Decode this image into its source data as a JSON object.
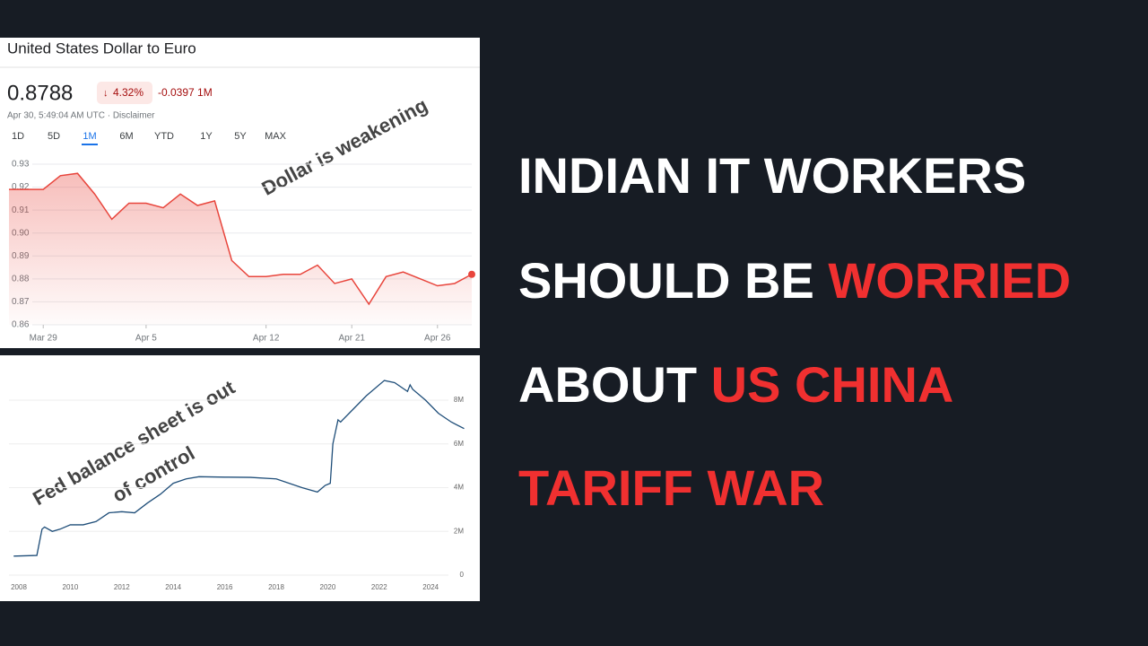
{
  "chart_data": [
    {
      "type": "line",
      "title": "United States Dollar to Euro",
      "price": "0.8788",
      "change_percent": "4.32%",
      "change_abs": "-0.0397 1M",
      "timestamp": "Apr 30, 5:49:04 AM UTC · Disclaimer",
      "ranges": [
        "1D",
        "5D",
        "1M",
        "6M",
        "YTD",
        "1Y",
        "5Y",
        "MAX"
      ],
      "selected_range": 2,
      "annotation": "Dollar is weakening",
      "categories": [
        null,
        null,
        "Mar 29",
        null,
        null,
        null,
        null,
        null,
        "Apr 5",
        null,
        null,
        null,
        null,
        null,
        null,
        "Apr 12",
        null,
        null,
        null,
        null,
        "Apr 21",
        null,
        null,
        null,
        null,
        "Apr 26",
        null,
        null
      ],
      "values": [
        0.919,
        0.919,
        0.919,
        0.925,
        0.926,
        0.917,
        0.906,
        0.913,
        0.913,
        0.911,
        0.917,
        0.912,
        0.914,
        0.888,
        0.881,
        0.881,
        0.882,
        0.882,
        0.886,
        0.878,
        0.88,
        0.869,
        0.881,
        0.883,
        0.88,
        0.877,
        0.878,
        0.882
      ],
      "color": "#e8453c",
      "ylim": [
        0.86,
        0.93
      ],
      "yticks": [
        0.93,
        0.92,
        0.91,
        {
          "value": 0.9,
          "label": "0.90"
        },
        0.89,
        0.88,
        0.87,
        0.86
      ],
      "grid": true
    },
    {
      "type": "line",
      "annotation": [
        "Fed balance sheet is out",
        "of control"
      ],
      "x": [
        2007.8,
        2008.7,
        2008.8,
        2008.9,
        2009.0,
        2009.3,
        2009.6,
        2010,
        2010.5,
        2011,
        2011.5,
        2012,
        2012.5,
        2013,
        2013.5,
        2014,
        2014.5,
        2015,
        2016,
        2017,
        2018,
        2019,
        2019.6,
        2019.9,
        2020.1,
        2020.2,
        2020.4,
        2020.5,
        2021,
        2021.5,
        2022.2,
        2022.6,
        2023.1,
        2023.2,
        2023.3,
        2023.8,
        2024.3,
        2024.8,
        2025.3
      ],
      "values": [
        0.87,
        0.9,
        1.5,
        2.1,
        2.2,
        2.0,
        2.1,
        2.3,
        2.3,
        2.45,
        2.85,
        2.9,
        2.85,
        3.3,
        3.7,
        4.2,
        4.4,
        4.5,
        4.48,
        4.47,
        4.4,
        4.0,
        3.8,
        4.1,
        4.2,
        6.0,
        7.1,
        7.0,
        7.6,
        8.2,
        8.9,
        8.8,
        8.4,
        8.7,
        8.5,
        8.0,
        7.4,
        7.0,
        6.7
      ],
      "color": "#1f4e79",
      "xlim": [
        2007.8,
        2025.4
      ],
      "xticks": [
        2008,
        2010,
        2012,
        2014,
        2016,
        2018,
        2020,
        2022,
        2024
      ],
      "ylim": [
        0,
        9.6
      ],
      "yticks": [
        0,
        {
          "value": 2,
          "label": "2M"
        },
        {
          "value": 4,
          "label": "4M"
        },
        {
          "value": 6,
          "label": "6M"
        },
        {
          "value": 8,
          "label": "8M"
        }
      ],
      "grid": true
    }
  ],
  "headline": [
    [
      {
        "text": "INDIAN IT WORKERS",
        "color": "#ffffff"
      }
    ],
    [
      {
        "text": "SHOULD BE ",
        "color": "#ffffff"
      },
      {
        "text": "WORRIED",
        "color": "#f03030"
      }
    ],
    [
      {
        "text": "ABOUT ",
        "color": "#ffffff"
      },
      {
        "text": "US CHINA",
        "color": "#f03030"
      }
    ],
    [
      {
        "text": "TARIFF WAR",
        "color": "#f03030"
      }
    ]
  ]
}
